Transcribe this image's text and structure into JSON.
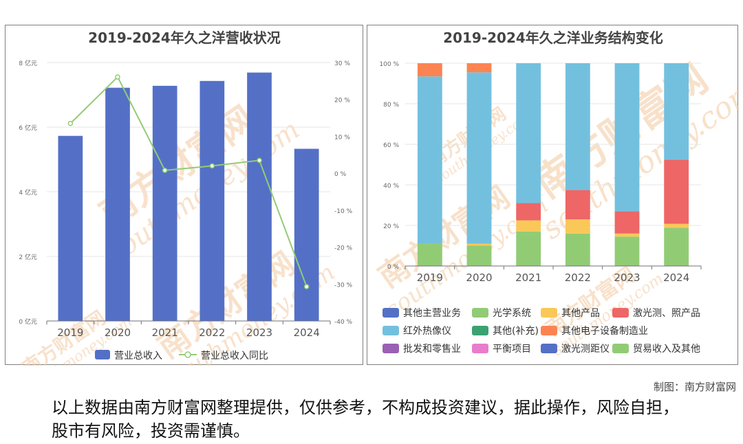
{
  "credit": "制图：南方财富网",
  "disclaimer": "以上数据由南方财富网整理提供，仅供参考，不构成投资建议，据此操作，风险自担，股市有风险，投资需谨慎。",
  "watermark": {
    "cn": "南方财富网",
    "en": "southmoney.com",
    "color": "#f3c9a0"
  },
  "chart_data": [
    {
      "type": "bar",
      "title": "2019-2024年久之洋营收状况",
      "categories": [
        "2019",
        "2020",
        "2021",
        "2022",
        "2023",
        "2024"
      ],
      "y_left": {
        "ticks": [
          "0 亿元",
          "2 亿元",
          "4 亿元",
          "6 亿元",
          "8 亿元"
        ],
        "range": [
          0,
          8
        ]
      },
      "y_right": {
        "ticks": [
          "-40 %",
          "-30 %",
          "-20 %",
          "-10 %",
          "0 %",
          "10 %",
          "20 %",
          "30 %"
        ],
        "range": [
          -40,
          30
        ]
      },
      "series": [
        {
          "name": "营业总收入",
          "kind": "bar",
          "axis": "left",
          "color": "#5470c6",
          "values": [
            5.73,
            7.22,
            7.28,
            7.43,
            7.69,
            5.33
          ]
        },
        {
          "name": "营业总收入同比",
          "kind": "line",
          "axis": "right",
          "color": "#91cc75",
          "values": [
            13.5,
            26.1,
            0.8,
            2.0,
            3.5,
            -30.7
          ]
        }
      ],
      "legend_position": "bottom",
      "grid": true
    },
    {
      "type": "bar",
      "stacked": true,
      "title": "2019-2024年久之洋业务结构变化",
      "categories": [
        "2019",
        "2020",
        "2021",
        "2022",
        "2023",
        "2024"
      ],
      "y_ticks": [
        "0 %",
        "20 %",
        "40 %",
        "60 %",
        "80 %",
        "100 %"
      ],
      "ylim": [
        0,
        100
      ],
      "legend": [
        {
          "name": "其他主营业务",
          "color": "#5470c6"
        },
        {
          "name": "光学系统",
          "color": "#91cc75"
        },
        {
          "name": "其他产品",
          "color": "#fac858"
        },
        {
          "name": "激光测、照产品",
          "color": "#ee6666"
        },
        {
          "name": "红外热像仪",
          "color": "#73c0de"
        },
        {
          "name": "其他(补充)",
          "color": "#3ba272"
        },
        {
          "name": "其他电子设备制造业",
          "color": "#fc8452"
        },
        {
          "name": "批发和零售业",
          "color": "#9a60b4"
        },
        {
          "name": "平衡项目",
          "color": "#ea7ccc"
        },
        {
          "name": "激光测距仪",
          "color": "#5470c6"
        },
        {
          "name": "贸易收入及其他",
          "color": "#91cc75"
        }
      ],
      "stacks": [
        {
          "name": "光学系统",
          "color": "#91cc75",
          "values": [
            11.0,
            10.0,
            17.0,
            16.0,
            14.5,
            18.8
          ]
        },
        {
          "name": "其他产品",
          "color": "#fac858",
          "values": [
            0.0,
            1.0,
            5.5,
            7.0,
            1.5,
            2.0
          ]
        },
        {
          "name": "激光测、照产品",
          "color": "#ee6666",
          "values": [
            0.0,
            0.0,
            8.5,
            14.5,
            11.0,
            31.6
          ]
        },
        {
          "name": "红外热像仪",
          "color": "#73c0de",
          "values": [
            82.5,
            84.5,
            69.0,
            62.5,
            73.0,
            47.6
          ]
        },
        {
          "name": "其他电子设备制造业",
          "color": "#fc8452",
          "values": [
            6.5,
            4.5,
            0.0,
            0.0,
            0.0,
            0.0
          ]
        }
      ],
      "legend_position": "bottom",
      "grid": true
    }
  ]
}
